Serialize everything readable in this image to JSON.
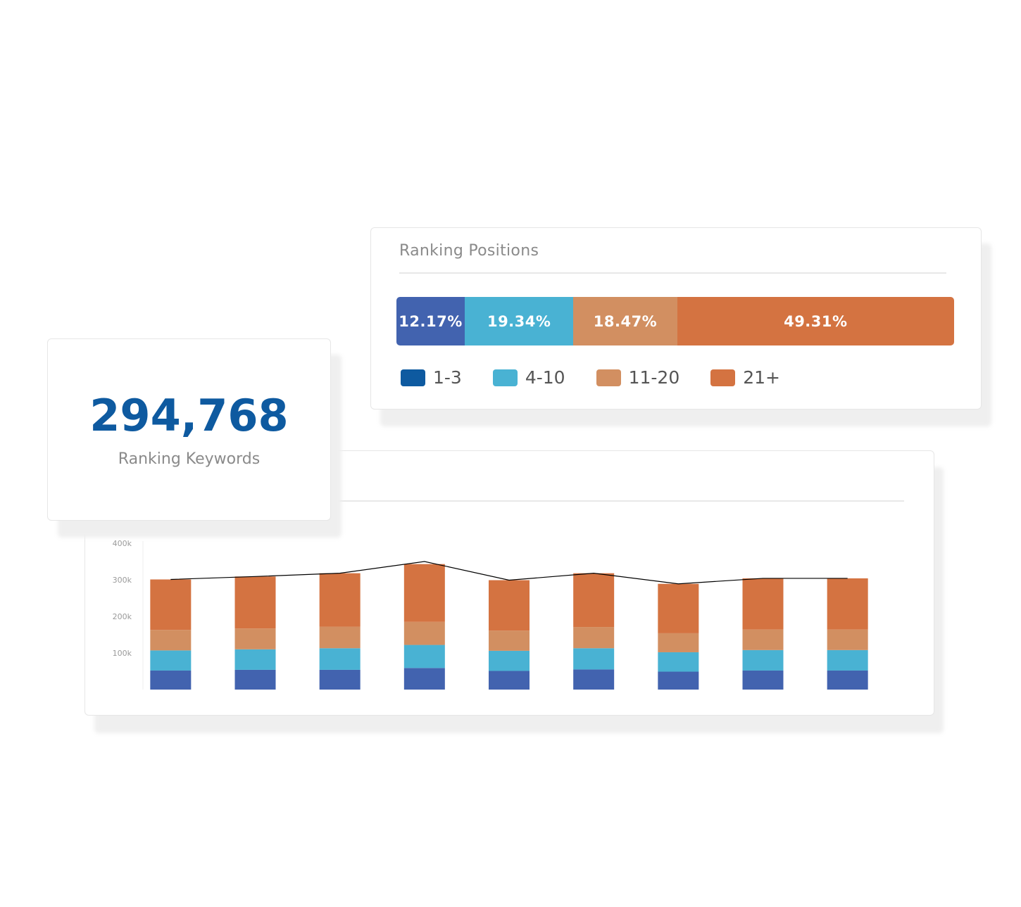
{
  "ranking_positions": {
    "title": "Ranking Positions",
    "segments": [
      {
        "label": "12.17%",
        "value": 12.17,
        "color": "#4263af"
      },
      {
        "label": "19.34%",
        "value": 19.34,
        "color": "#49b2d3"
      },
      {
        "label": "18.47%",
        "value": 18.47,
        "color": "#d28f61"
      },
      {
        "label": "49.31%",
        "value": 49.31,
        "color": "#d47341"
      }
    ],
    "legend": [
      {
        "label": "1-3",
        "color": "#0e5aa0"
      },
      {
        "label": "4-10",
        "color": "#49b2d3"
      },
      {
        "label": "11-20",
        "color": "#d28f61"
      },
      {
        "label": "21+",
        "color": "#d47341"
      }
    ]
  },
  "kpi": {
    "value": "294,768",
    "label": "Ranking Keywords"
  },
  "chart_data": [
    {
      "type": "bar",
      "stacked": true,
      "y_ticks": [
        "100k",
        "200k",
        "300k",
        "400k"
      ],
      "ylim": [
        0,
        400000
      ],
      "series": [
        {
          "color": "#4263af",
          "values": [
            52000,
            54000,
            54000,
            59000,
            51000,
            55000,
            49000,
            52000,
            52000
          ]
        },
        {
          "color": "#49b2d3",
          "values": [
            55000,
            56000,
            59000,
            63000,
            55000,
            58000,
            53000,
            56000,
            56000
          ]
        },
        {
          "color": "#d28f61",
          "values": [
            56000,
            57000,
            59000,
            63000,
            55000,
            58000,
            52000,
            56000,
            56000
          ]
        },
        {
          "color": "#d47341",
          "values": [
            138000,
            142000,
            146000,
            158000,
            138000,
            147000,
            135000,
            140000,
            140000
          ]
        }
      ],
      "line": {
        "color": "#000000",
        "values": [
          301000,
          309000,
          318000,
          350000,
          299000,
          318000,
          289000,
          304000,
          304000
        ]
      },
      "grid": false
    }
  ]
}
